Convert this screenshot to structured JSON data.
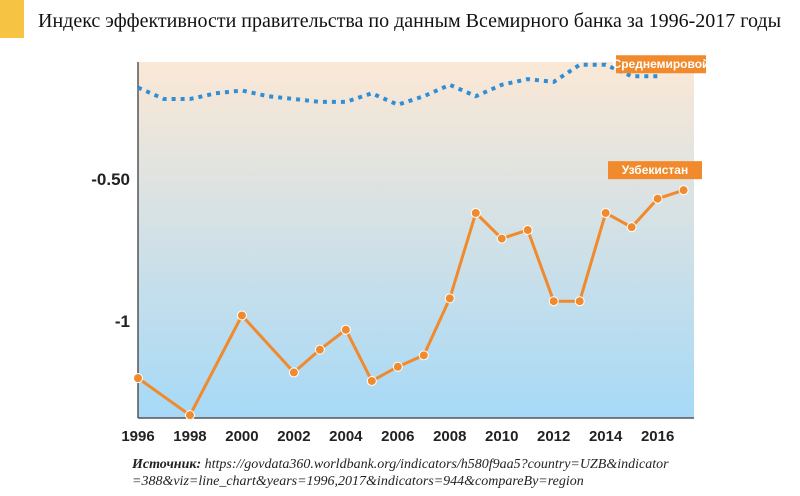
{
  "header": {
    "title": "Индекс эффективности правительства по данным Всемирного банка за 1996-2017 годы"
  },
  "source": {
    "label": "Источник:",
    "line1": "https://govdata360.worldbank.org/indicators/h580f9aa5?country=UZB&indicator",
    "line2": "=388&viz=line_chart&years=1996,2017&indicators=944&compareBy=region"
  },
  "colors": {
    "accent": "#f6c343",
    "uzbekistan": "#f08a2c",
    "world": "#2f8fd6",
    "axis": "#555555",
    "gradient_top": "#fbe8d6",
    "gradient_bottom": "#a6d9f7"
  },
  "chart_data": {
    "type": "line",
    "x": [
      1996,
      1997,
      1998,
      1999,
      2000,
      2001,
      2002,
      2003,
      2004,
      2005,
      2006,
      2007,
      2008,
      2009,
      2010,
      2011,
      2012,
      2013,
      2014,
      2015,
      2016,
      2017
    ],
    "xtick_labels": [
      "1996",
      "1998",
      "2000",
      "2002",
      "2004",
      "2006",
      "2008",
      "2010",
      "2012",
      "2014",
      "2016"
    ],
    "xtick_values": [
      1996,
      1998,
      2000,
      2002,
      2004,
      2006,
      2008,
      2010,
      2012,
      2014,
      2016
    ],
    "ytick_labels": [
      "-0.50",
      "-1"
    ],
    "ytick_values": [
      -0.5,
      -1
    ],
    "ylim": [
      -1.34,
      -0.09
    ],
    "xlim": [
      1996,
      2017.4
    ],
    "grid": false,
    "series": [
      {
        "name": "Среднемировой",
        "style": "dotted",
        "x": [
          1996,
          1997,
          1998,
          1999,
          2000,
          2001,
          2002,
          2003,
          2004,
          2005,
          2006,
          2007,
          2008,
          2009,
          2010,
          2011,
          2012,
          2013,
          2014,
          2015,
          2016
        ],
        "values": [
          -0.18,
          -0.22,
          -0.22,
          -0.2,
          -0.19,
          -0.21,
          -0.22,
          -0.23,
          -0.23,
          -0.2,
          -0.24,
          -0.21,
          -0.17,
          -0.21,
          -0.17,
          -0.15,
          -0.16,
          -0.1,
          -0.1,
          -0.14,
          -0.14
        ]
      },
      {
        "name": "Узбекистан",
        "style": "solid",
        "x": [
          1996,
          1998,
          2000,
          2002,
          2003,
          2004,
          2005,
          2006,
          2007,
          2008,
          2009,
          2010,
          2011,
          2012,
          2013,
          2014,
          2015,
          2016,
          2017
        ],
        "values": [
          -1.2,
          -1.33,
          -0.98,
          -1.18,
          -1.1,
          -1.03,
          -1.21,
          -1.16,
          -1.12,
          -0.92,
          -0.62,
          -0.71,
          -0.68,
          -0.93,
          -0.93,
          -0.62,
          -0.67,
          -0.57,
          -0.54
        ]
      }
    ]
  }
}
